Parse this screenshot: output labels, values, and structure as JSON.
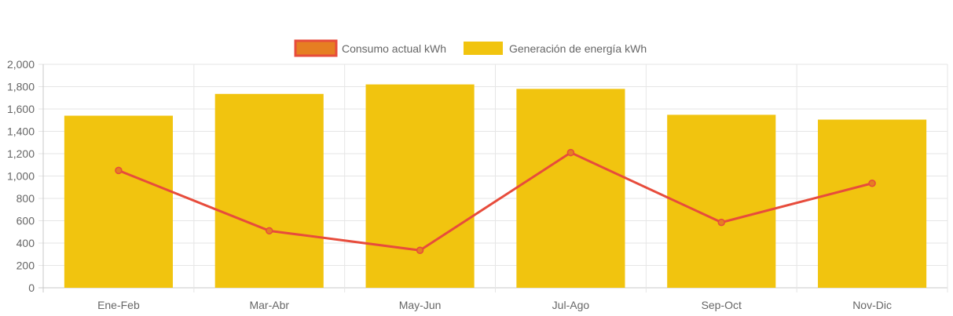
{
  "chart_data": {
    "type": "bar",
    "categories": [
      "Ene-Feb",
      "Mar-Abr",
      "May-Jun",
      "Jul-Ago",
      "Sep-Oct",
      "Nov-Dic"
    ],
    "series": [
      {
        "name": "Consumo actual kWh",
        "type": "line",
        "values": [
          1050,
          510,
          335,
          1210,
          585,
          935
        ],
        "color": "#e74c3c",
        "point_fill": "#e67e22"
      },
      {
        "name": "Generación de energía kWh",
        "type": "bar",
        "values": [
          1540,
          1735,
          1820,
          1780,
          1548,
          1505
        ],
        "color": "#f1c40f"
      }
    ],
    "legend_position": "top",
    "ylim": [
      0,
      2000
    ],
    "yticks": [
      "0",
      "200",
      "400",
      "600",
      "800",
      "1,000",
      "1,200",
      "1,400",
      "1,600",
      "1,800",
      "2,000"
    ],
    "grid": true,
    "title": "",
    "xlabel": "",
    "ylabel": ""
  }
}
